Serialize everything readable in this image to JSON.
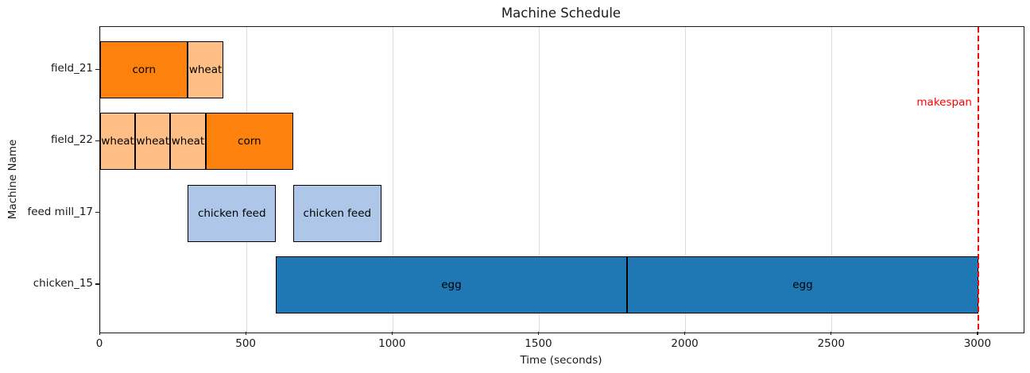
{
  "title": "Machine Schedule",
  "xlabel": "Time (seconds)",
  "ylabel": "Machine Name",
  "makespan_label": "makespan",
  "colors": {
    "corn": "#fd810d",
    "wheat": "#ffbe85",
    "chicken_feed": "#aec7e8",
    "egg": "#1f77b4",
    "makespan": "#ff0000",
    "grid": "#dcdcdc",
    "bar_edge": "#000000"
  },
  "chart_data": {
    "type": "bar",
    "subtype": "gantt-horizontal",
    "title": "Machine Schedule",
    "xlabel": "Time (seconds)",
    "ylabel": "Machine Name",
    "machines": [
      "field_21",
      "field_22",
      "feed mill_17",
      "chicken_15"
    ],
    "x_ticks": [
      0,
      500,
      1000,
      1500,
      2000,
      2500,
      3000
    ],
    "xlim": [
      0,
      3155
    ],
    "grid": "vertical",
    "legend": "none",
    "makespan": {
      "value": 3000,
      "label": "makespan",
      "color": "#ff0000",
      "style": "dashed"
    },
    "tasks": [
      {
        "machine": "field_21",
        "label": "corn",
        "start": 0,
        "end": 300,
        "color": "#fd810d"
      },
      {
        "machine": "field_21",
        "label": "wheat",
        "start": 300,
        "end": 420,
        "color": "#ffbe85"
      },
      {
        "machine": "field_22",
        "label": "wheat",
        "start": 0,
        "end": 120,
        "color": "#ffbe85"
      },
      {
        "machine": "field_22",
        "label": "wheat",
        "start": 120,
        "end": 240,
        "color": "#ffbe85"
      },
      {
        "machine": "field_22",
        "label": "wheat",
        "start": 240,
        "end": 360,
        "color": "#ffbe85"
      },
      {
        "machine": "field_22",
        "label": "corn",
        "start": 360,
        "end": 660,
        "color": "#fd810d"
      },
      {
        "machine": "feed mill_17",
        "label": "chicken feed",
        "start": 300,
        "end": 600,
        "color": "#aec7e8"
      },
      {
        "machine": "feed mill_17",
        "label": "chicken feed",
        "start": 660,
        "end": 960,
        "color": "#aec7e8"
      },
      {
        "machine": "chicken_15",
        "label": "egg",
        "start": 600,
        "end": 1800,
        "color": "#1f77b4"
      },
      {
        "machine": "chicken_15",
        "label": "egg",
        "start": 1800,
        "end": 3000,
        "color": "#1f77b4"
      }
    ]
  }
}
